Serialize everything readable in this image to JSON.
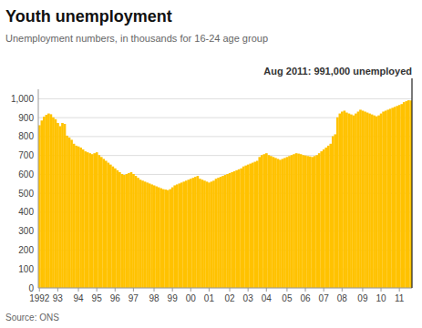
{
  "chart_data": {
    "type": "bar",
    "title": "Youth unemployment",
    "subtitle": "Unemployment numbers, in thousands for 16-24 age group",
    "annotation": "Aug 2011: 991,000 unemployed",
    "source": "Source: ONS",
    "color": "#FFC200",
    "grid": true,
    "ylim": [
      0,
      1050
    ],
    "yticks": [
      0,
      100,
      200,
      300,
      400,
      500,
      600,
      700,
      800,
      900,
      {
        "value": 1000,
        "label": "1,000"
      }
    ],
    "categories": [
      "1992",
      null,
      null,
      null,
      null,
      null,
      null,
      null,
      "93",
      null,
      null,
      null,
      null,
      null,
      null,
      null,
      null,
      "94",
      null,
      null,
      null,
      null,
      null,
      null,
      null,
      "95",
      null,
      null,
      null,
      null,
      null,
      null,
      null,
      "96",
      null,
      null,
      null,
      null,
      null,
      null,
      null,
      "97",
      null,
      null,
      null,
      null,
      null,
      null,
      null,
      null,
      "98",
      null,
      null,
      null,
      null,
      null,
      null,
      null,
      "99",
      null,
      null,
      null,
      null,
      null,
      null,
      null,
      "00",
      null,
      null,
      null,
      null,
      null,
      null,
      null,
      "01",
      null,
      null,
      null,
      null,
      null,
      null,
      null,
      null,
      "02",
      null,
      null,
      null,
      null,
      null,
      null,
      null,
      "03",
      null,
      null,
      null,
      null,
      null,
      null,
      null,
      "04",
      null,
      null,
      null,
      null,
      null,
      null,
      null,
      null,
      "05",
      null,
      null,
      null,
      null,
      null,
      null,
      null,
      "06",
      null,
      null,
      null,
      null,
      null,
      null,
      null,
      "07",
      null,
      null,
      null,
      null,
      null,
      null,
      null,
      "08",
      null,
      null,
      null,
      null,
      null,
      null,
      null,
      null,
      "09",
      null,
      null,
      null,
      null,
      null,
      null,
      null,
      "10",
      null,
      null,
      null,
      null,
      null,
      null,
      null,
      "11",
      null,
      null,
      null,
      null,
      null
    ],
    "values": [
      860,
      885,
      905,
      915,
      922,
      918,
      902,
      892,
      872,
      855,
      872,
      867,
      805,
      795,
      783,
      762,
      752,
      748,
      742,
      732,
      722,
      717,
      712,
      707,
      712,
      717,
      702,
      692,
      682,
      672,
      662,
      652,
      642,
      632,
      622,
      612,
      602,
      597,
      602,
      607,
      612,
      602,
      592,
      582,
      572,
      567,
      562,
      557,
      552,
      547,
      542,
      537,
      532,
      527,
      522,
      520,
      517,
      522,
      532,
      542,
      547,
      552,
      557,
      562,
      567,
      572,
      577,
      582,
      587,
      592,
      577,
      572,
      567,
      562,
      557,
      562,
      567,
      577,
      582,
      587,
      592,
      597,
      602,
      607,
      612,
      617,
      622,
      627,
      632,
      642,
      647,
      652,
      657,
      662,
      667,
      672,
      692,
      702,
      707,
      712,
      702,
      697,
      692,
      687,
      682,
      677,
      682,
      687,
      692,
      697,
      702,
      707,
      712,
      710,
      707,
      702,
      700,
      697,
      695,
      692,
      697,
      702,
      712,
      722,
      732,
      742,
      752,
      762,
      802,
      812,
      902,
      922,
      932,
      937,
      927,
      922,
      917,
      912,
      922,
      932,
      942,
      937,
      932,
      927,
      922,
      917,
      912,
      907,
      912,
      922,
      932,
      937,
      942,
      947,
      952,
      957,
      962,
      967,
      972,
      982,
      987,
      992,
      991
    ]
  }
}
